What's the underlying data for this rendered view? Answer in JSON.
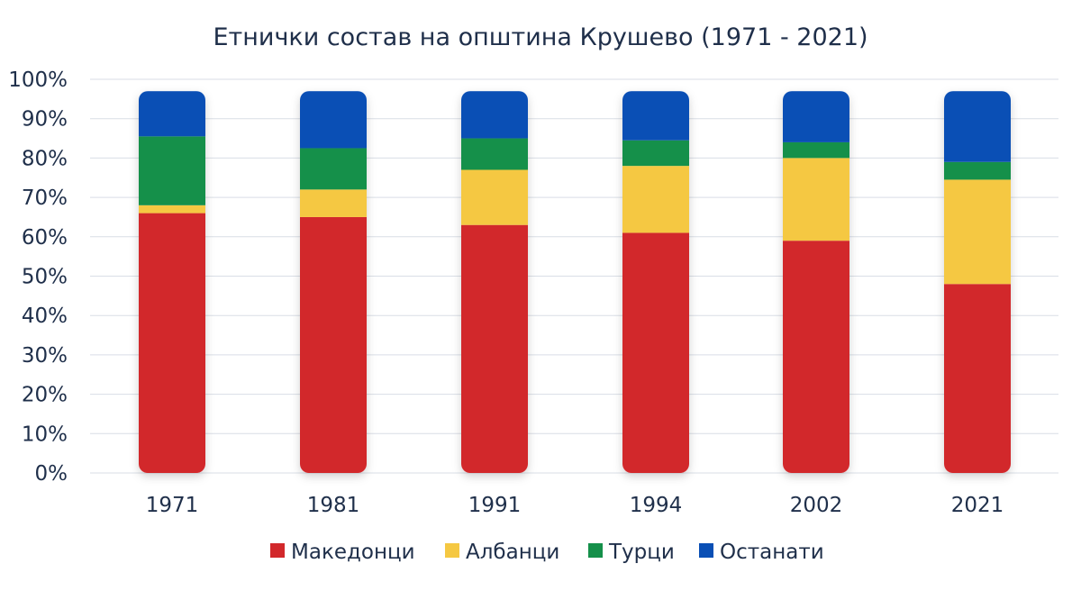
{
  "chart_data": {
    "type": "bar",
    "stacked": true,
    "title": "Етнички состав на општина Крушево (1971 - 2021)",
    "xlabel": "",
    "ylabel": "",
    "ylim": [
      0,
      100
    ],
    "y_ticks": [
      "0%",
      "10%",
      "20%",
      "30%",
      "40%",
      "50%",
      "60%",
      "70%",
      "80%",
      "90%",
      "100%"
    ],
    "grid": true,
    "legend_position": "bottom",
    "categories": [
      "1971",
      "1981",
      "1991",
      "1994",
      "2002",
      "2021"
    ],
    "series": [
      {
        "name": "Македонци",
        "color": "#d2282b",
        "values": [
          66,
          65,
          63,
          61,
          59,
          48
        ]
      },
      {
        "name": "Албанци",
        "color": "#f5c842",
        "values": [
          2,
          7,
          14,
          17,
          21,
          26.5
        ]
      },
      {
        "name": "Турци",
        "color": "#15904a",
        "values": [
          17.5,
          10.5,
          8,
          6.5,
          4,
          4.5
        ]
      },
      {
        "name": "Останати",
        "color": "#0a4fb5",
        "values": [
          11.5,
          14.5,
          12,
          12.5,
          13,
          18
        ]
      }
    ]
  }
}
